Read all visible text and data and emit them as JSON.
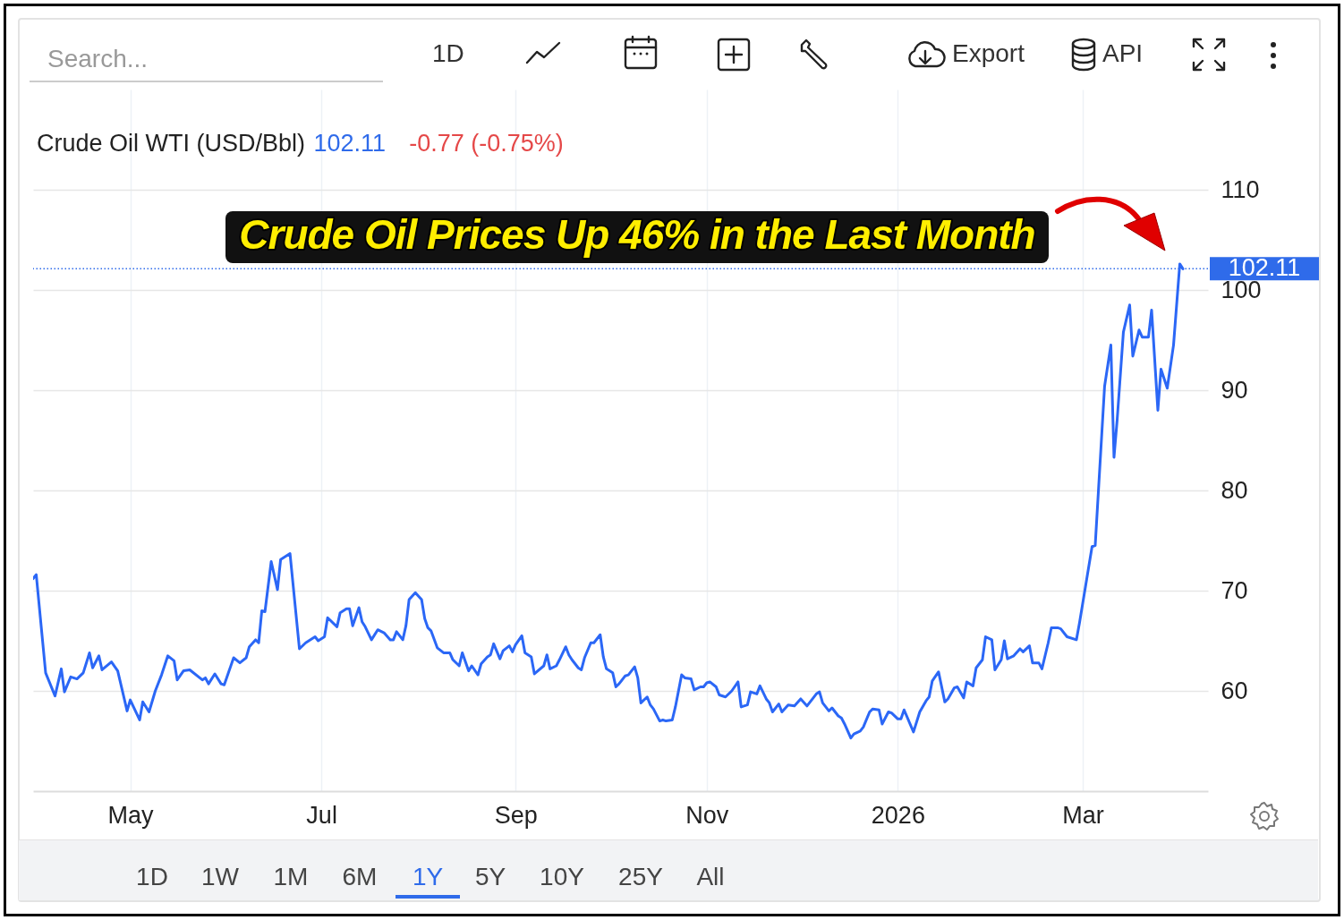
{
  "chart_data": {
    "type": "line",
    "title": "Crude Oil WTI (USD/Bbl)",
    "annotations": [
      "102.11",
      "-0.77 (-0.75%)",
      "Crude Oil Prices Up 46% in the Last Month",
      "Search...",
      "1D",
      "Export",
      "API",
      "1D",
      "1W",
      "1M",
      "6M",
      "1Y",
      "5Y",
      "10Y",
      "25Y",
      "All"
    ],
    "x": [
      "2025-03-31",
      "2025-04-01",
      "2025-04-04",
      "2025-04-07",
      "2025-04-09",
      "2025-04-10",
      "2025-04-12",
      "2025-04-14",
      "2025-04-16",
      "2025-04-18",
      "2025-04-19",
      "2025-04-21",
      "2025-04-22",
      "2025-04-25",
      "2025-04-27",
      "2025-04-30",
      "2025-05-01",
      "2025-05-04",
      "2025-05-05",
      "2025-05-07",
      "2025-05-09",
      "2025-05-11",
      "2025-05-13",
      "2025-05-15",
      "2025-05-16",
      "2025-05-18",
      "2025-05-20",
      "2025-05-24",
      "2025-05-25",
      "2025-05-26",
      "2025-05-28",
      "2025-05-30",
      "2025-05-31",
      "2025-06-02",
      "2025-06-03",
      "2025-06-05",
      "2025-06-07",
      "2025-06-08",
      "2025-06-10",
      "2025-06-11",
      "2025-06-12",
      "2025-06-13",
      "2025-06-15",
      "2025-06-17",
      "2025-06-18",
      "2025-06-21",
      "2025-06-24",
      "2025-06-26",
      "2025-06-29",
      "2025-06-30",
      "2025-07-02",
      "2025-07-03",
      "2025-07-06",
      "2025-07-07",
      "2025-07-09",
      "2025-07-10",
      "2025-07-11",
      "2025-07-13",
      "2025-07-14",
      "2025-07-15",
      "2025-07-17",
      "2025-07-19",
      "2025-07-21",
      "2025-07-23",
      "2025-07-24",
      "2025-07-25",
      "2025-07-27",
      "2025-07-28",
      "2025-07-29",
      "2025-07-31",
      "2025-08-02",
      "2025-08-03",
      "2025-08-04",
      "2025-08-05",
      "2025-08-07",
      "2025-08-09",
      "2025-08-11",
      "2025-08-12",
      "2025-08-14",
      "2025-08-15",
      "2025-08-17",
      "2025-08-18",
      "2025-08-20",
      "2025-08-21",
      "2025-08-23",
      "2025-08-24",
      "2025-08-25",
      "2025-08-27",
      "2025-08-28",
      "2025-08-30",
      "2025-08-31",
      "2025-09-01",
      "2025-09-03",
      "2025-09-04",
      "2025-09-06",
      "2025-09-07",
      "2025-09-10",
      "2025-09-11",
      "2025-09-12",
      "2025-09-14",
      "2025-09-15",
      "2025-09-17",
      "2025-09-18",
      "2025-09-19",
      "2025-09-21",
      "2025-09-22",
      "2025-09-23",
      "2025-09-25",
      "2025-09-26",
      "2025-09-28",
      "2025-09-29",
      "2025-09-30",
      "2025-10-02",
      "2025-10-03",
      "2025-10-04",
      "2025-10-06",
      "2025-10-07",
      "2025-10-09",
      "2025-10-10",
      "2025-10-11",
      "2025-10-13",
      "2025-10-14",
      "2025-10-15",
      "2025-10-17",
      "2025-10-18",
      "2025-10-19",
      "2025-10-21",
      "2025-10-22",
      "2025-10-24",
      "2025-10-25",
      "2025-10-27",
      "2025-10-28",
      "2025-10-30",
      "2025-10-31",
      "2025-11-01",
      "2025-11-02",
      "2025-11-04",
      "2025-11-05",
      "2025-11-07",
      "2025-11-09",
      "2025-11-11",
      "2025-11-12",
      "2025-11-14",
      "2025-11-15",
      "2025-11-17",
      "2025-11-18",
      "2025-11-20",
      "2025-11-21",
      "2025-11-22",
      "2025-11-24",
      "2025-11-25",
      "2025-11-27",
      "2025-11-29",
      "2025-12-01",
      "2025-12-03",
      "2025-12-04",
      "2025-12-06",
      "2025-12-07",
      "2025-12-08",
      "2025-12-10",
      "2025-12-11",
      "2025-12-13",
      "2025-12-14",
      "2025-12-15",
      "2025-12-17",
      "2025-12-18",
      "2025-12-20",
      "2025-12-21",
      "2025-12-23",
      "2025-12-24",
      "2025-12-26",
      "2025-12-27",
      "2025-12-29",
      "2025-12-30",
      "2026-01-01",
      "2026-01-02",
      "2026-01-03",
      "2026-01-06",
      "2026-01-08",
      "2026-01-10",
      "2026-01-11",
      "2026-01-12",
      "2026-01-14",
      "2026-01-16",
      "2026-01-17",
      "2026-01-19",
      "2026-01-20",
      "2026-01-22",
      "2026-01-23",
      "2026-01-25",
      "2026-01-26",
      "2026-01-28",
      "2026-01-29",
      "2026-01-31",
      "2026-02-01",
      "2026-02-03",
      "2026-02-04",
      "2026-02-05",
      "2026-02-07",
      "2026-02-09",
      "2026-02-10",
      "2026-02-12",
      "2026-02-13",
      "2026-02-15",
      "2026-02-16",
      "2026-02-18",
      "2026-02-19",
      "2026-02-21",
      "2026-02-22",
      "2026-02-24",
      "2026-02-27",
      "2026-02-28",
      "2026-03-02",
      "2026-03-04",
      "2026-03-05",
      "2026-03-06",
      "2026-03-08",
      "2026-03-10",
      "2026-03-11",
      "2026-03-12",
      "2026-03-14",
      "2026-03-16",
      "2026-03-17",
      "2026-03-19",
      "2026-03-20",
      "2026-03-22",
      "2026-03-23",
      "2026-03-25",
      "2026-03-26",
      "2026-03-28",
      "2026-03-30",
      "2026-04-01",
      "2026-04-02"
    ],
    "values": [
      71.2,
      71.6,
      61.8,
      59.5,
      62.2,
      59.9,
      61.4,
      61.2,
      61.8,
      63.8,
      62.3,
      63.5,
      62.1,
      62.9,
      62.0,
      58.0,
      59.1,
      57.1,
      58.9,
      57.9,
      60.0,
      61.6,
      63.5,
      63.0,
      61.1,
      62.0,
      62.1,
      61.1,
      61.3,
      60.7,
      61.7,
      60.7,
      60.6,
      62.4,
      63.3,
      62.8,
      63.3,
      64.4,
      65.1,
      64.8,
      68.0,
      67.9,
      72.9,
      70.1,
      73.1,
      73.7,
      64.2,
      64.8,
      65.4,
      65.0,
      65.4,
      67.3,
      66.4,
      67.8,
      68.2,
      68.2,
      66.5,
      68.3,
      66.9,
      66.4,
      65.1,
      66.1,
      65.8,
      65.1,
      65.1,
      65.9,
      65.1,
      66.5,
      69.1,
      69.8,
      69.1,
      67.2,
      66.3,
      66.0,
      64.3,
      63.8,
      63.8,
      63.1,
      62.5,
      63.8,
      62.0,
      62.5,
      61.6,
      62.7,
      63.4,
      63.6,
      64.7,
      63.2,
      64.0,
      64.5,
      63.9,
      64.6,
      65.5,
      63.8,
      63.4,
      61.7,
      62.5,
      63.6,
      62.2,
      62.5,
      63.1,
      64.4,
      63.6,
      63.1,
      62.3,
      62.1,
      63.3,
      64.8,
      64.8,
      65.6,
      63.4,
      62.2,
      61.8,
      60.4,
      60.7,
      61.5,
      61.6,
      62.4,
      61.3,
      58.8,
      59.4,
      58.6,
      58.2,
      57.0,
      57.1,
      57.0,
      57.1,
      58.4,
      61.6,
      61.3,
      61.2,
      60.1,
      60.4,
      60.4,
      60.8,
      60.9,
      60.4,
      59.6,
      59.4,
      60.0,
      60.9,
      58.4,
      58.6,
      59.9,
      59.7,
      60.5,
      59.2,
      58.8,
      57.9,
      58.7,
      57.9,
      58.6,
      58.5,
      59.2,
      58.5,
      58.9,
      59.7,
      59.9,
      58.8,
      58.0,
      58.3,
      57.5,
      57.3,
      56.7,
      55.3,
      55.7,
      56.0,
      56.4,
      57.9,
      58.2,
      58.1,
      56.7,
      57.9,
      57.8,
      57.2,
      57.2,
      58.1,
      55.9,
      57.9,
      59.0,
      59.4,
      61.0,
      61.9,
      58.9,
      59.2,
      60.3,
      60.4,
      59.3,
      60.9,
      60.5,
      62.3,
      63.1,
      65.4,
      65.1,
      62.1,
      63.1,
      65.0,
      63.2,
      63.5,
      64.2,
      63.9,
      64.5,
      62.8,
      62.8,
      62.2,
      64.8,
      66.3,
      66.3,
      66.2,
      65.4,
      65.1,
      66.8,
      70.6,
      74.4,
      74.5,
      79.8,
      90.4,
      94.5,
      83.3,
      87.0,
      95.8,
      98.5,
      93.4,
      96.0,
      95.3,
      95.3,
      98.0,
      88.0,
      92.1,
      90.2,
      94.5,
      102.6,
      102.11
    ],
    "color": "#2b67f6",
    "line_style": "solid",
    "marker": "none",
    "grid": true,
    "xlim": [
      "2025-03-31",
      "2026-04-10"
    ],
    "xticks": [
      {
        "value": "2025-05-01",
        "label": "May"
      },
      {
        "value": "2025-07-01",
        "label": "Jul"
      },
      {
        "value": "2025-09-01",
        "label": "Sep"
      },
      {
        "value": "2025-11-01",
        "label": "Nov"
      },
      {
        "value": "2026-01-01",
        "label": "2026"
      },
      {
        "value": "2026-03-01",
        "label": "Mar"
      }
    ],
    "ylim": [
      50,
      120
    ],
    "yticks": [
      60,
      70,
      80,
      90,
      100,
      110
    ],
    "ref_lines": [
      {
        "axis": "y",
        "value": 102.11,
        "label": "102.11",
        "color": "#2f6bea",
        "line_style": "dotted"
      }
    ]
  }
}
